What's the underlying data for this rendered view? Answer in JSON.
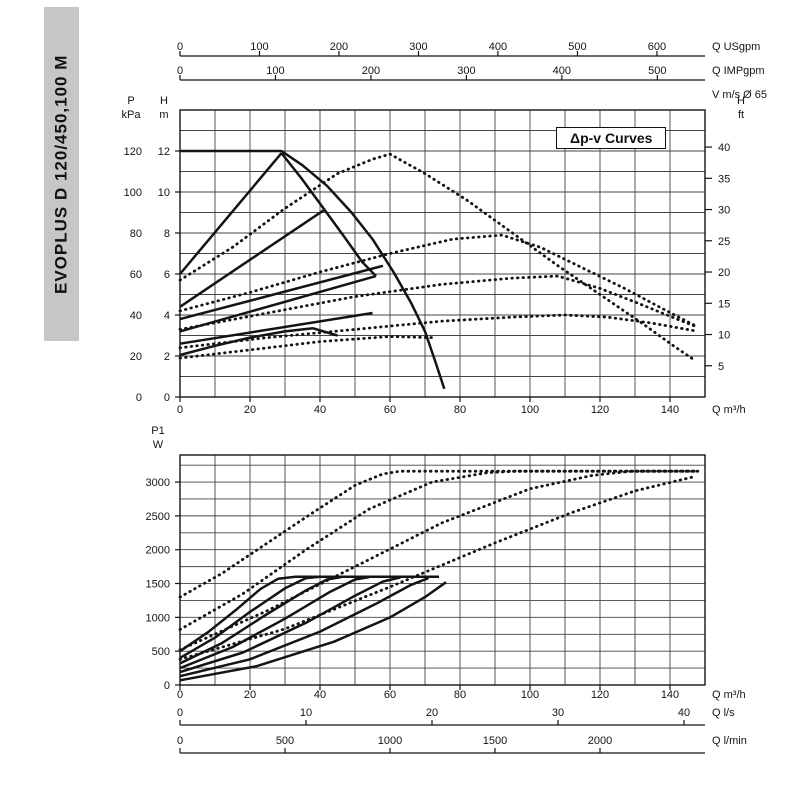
{
  "banner": {
    "text": "EVOPLUS D 120/450,100 M"
  },
  "colors": {
    "ink": "#141414",
    "grid": "#444444",
    "banner_bg": "#c6c6c6",
    "page_bg": "#ffffff"
  },
  "chart_data": [
    {
      "id": "head_chart",
      "type": "line",
      "title": "Δp-v Curves",
      "x_axis": {
        "label": "Q m³/h",
        "min": 0,
        "max": 150,
        "grid_step": 10,
        "tick_labels": [
          0,
          20,
          40,
          60,
          80,
          100,
          120,
          140
        ]
      },
      "y_axis": {
        "label": "H m",
        "min": 0,
        "max": 14,
        "grid_step": 1,
        "tick_labels": [
          0,
          2,
          4,
          6,
          8,
          10,
          12
        ]
      },
      "y_axis_kpa": {
        "label": "P kPa",
        "kpa_per_m": 10,
        "tick_labels": [
          0,
          20,
          40,
          60,
          80,
          100,
          120
        ]
      },
      "y_axis_ft": {
        "label": "H ft",
        "m_per_ft": 0.3048,
        "tick_labels": [
          5,
          10,
          15,
          20,
          25,
          30,
          35,
          40
        ]
      },
      "top_axes": [
        {
          "label": "Q USgpm",
          "m3h_per_unit": 0.22712,
          "tick_labels": [
            0,
            100,
            200,
            300,
            400,
            500,
            600
          ]
        },
        {
          "label": "Q IMPgpm",
          "m3h_per_unit": 0.27276,
          "tick_labels": [
            0,
            100,
            200,
            300,
            400,
            500
          ]
        },
        {
          "label": "V m/s Ø 65",
          "tick_labels": []
        }
      ],
      "series": [
        {
          "name": "max-speed-curve",
          "style": "solid",
          "points": [
            [
              0,
              12
            ],
            [
              29,
              12
            ],
            [
              35,
              11.3
            ],
            [
              42,
              10.3
            ],
            [
              49,
              9.0
            ],
            [
              55,
              7.7
            ],
            [
              61,
              6.1
            ],
            [
              66,
              4.6
            ],
            [
              70,
              3.2
            ],
            [
              73,
              1.7
            ],
            [
              75.5,
              0.4
            ]
          ]
        },
        {
          "name": "mid-speed-curve",
          "style": "solid",
          "points": [
            [
              29,
              11.9
            ],
            [
              35,
              10.6
            ],
            [
              41,
              9.2
            ],
            [
              47,
              7.8
            ],
            [
              52,
              6.6
            ],
            [
              56,
              5.9
            ]
          ]
        },
        {
          "name": "dpv-set-1",
          "style": "solid",
          "points": [
            [
              0,
              6.0
            ],
            [
              29,
              11.9
            ]
          ]
        },
        {
          "name": "dpv-set-2",
          "style": "solid",
          "points": [
            [
              0,
              4.4
            ],
            [
              41,
              9.1
            ]
          ]
        },
        {
          "name": "dpv-set-3",
          "style": "solid",
          "points": [
            [
              0,
              3.8
            ],
            [
              58,
              6.4
            ]
          ]
        },
        {
          "name": "dpv-set-4",
          "style": "solid",
          "points": [
            [
              0,
              3.2
            ],
            [
              56,
              5.9
            ]
          ]
        },
        {
          "name": "dpv-set-5",
          "style": "solid",
          "points": [
            [
              0,
              2.6
            ],
            [
              55,
              4.1
            ]
          ]
        },
        {
          "name": "min-speed-curve",
          "style": "solid",
          "points": [
            [
              0,
              2.05
            ],
            [
              10,
              2.5
            ],
            [
              20,
              2.9
            ],
            [
              30,
              3.2
            ],
            [
              38,
              3.35
            ],
            [
              45,
              3.0
            ]
          ]
        },
        {
          "name": "parallel-max",
          "style": "dotted",
          "points": [
            [
              0,
              5.7
            ],
            [
              15,
              7.3
            ],
            [
              30,
              9.2
            ],
            [
              45,
              10.9
            ],
            [
              55,
              11.6
            ],
            [
              60,
              11.85
            ],
            [
              70,
              10.9
            ],
            [
              82,
              9.6
            ],
            [
              95,
              8.0
            ],
            [
              108,
              6.4
            ],
            [
              120,
              5.0
            ],
            [
              132,
              3.6
            ],
            [
              141,
              2.5
            ],
            [
              147,
              1.8
            ]
          ]
        },
        {
          "name": "parallel-2",
          "style": "dotted",
          "points": [
            [
              0,
              4.2
            ],
            [
              20,
              5.1
            ],
            [
              40,
              6.1
            ],
            [
              60,
              7.0
            ],
            [
              78,
              7.7
            ],
            [
              92,
              7.9
            ],
            [
              103,
              7.3
            ],
            [
              115,
              6.3
            ],
            [
              127,
              5.3
            ],
            [
              138,
              4.3
            ],
            [
              147,
              3.5
            ]
          ]
        },
        {
          "name": "parallel-3",
          "style": "dotted",
          "points": [
            [
              0,
              3.3
            ],
            [
              25,
              4.1
            ],
            [
              50,
              4.9
            ],
            [
              75,
              5.5
            ],
            [
              95,
              5.8
            ],
            [
              108,
              5.9
            ],
            [
              120,
              5.3
            ],
            [
              132,
              4.5
            ],
            [
              142,
              3.8
            ],
            [
              148,
              3.4
            ]
          ]
        },
        {
          "name": "parallel-4",
          "style": "dotted",
          "points": [
            [
              0,
              2.4
            ],
            [
              25,
              2.9
            ],
            [
              50,
              3.3
            ],
            [
              75,
              3.7
            ],
            [
              95,
              3.9
            ],
            [
              110,
              4.0
            ],
            [
              122,
              3.9
            ],
            [
              135,
              3.6
            ],
            [
              148,
              3.2
            ]
          ]
        },
        {
          "name": "parallel-min",
          "style": "dotted",
          "points": [
            [
              0,
              1.9
            ],
            [
              20,
              2.3
            ],
            [
              40,
              2.7
            ],
            [
              60,
              2.95
            ],
            [
              72,
              2.9
            ]
          ]
        }
      ]
    },
    {
      "id": "power_chart",
      "type": "line",
      "x_axis": {
        "label": "Q m³/h",
        "min": 0,
        "max": 150,
        "grid_step": 10,
        "tick_labels": [
          0,
          20,
          40,
          60,
          80,
          100,
          120,
          140
        ]
      },
      "y_axis": {
        "label": "P1 W",
        "min": 0,
        "max": 3400,
        "grid_step": 250,
        "tick_labels": [
          0,
          500,
          1000,
          1500,
          2000,
          2500,
          3000
        ]
      },
      "bottom_axes": [
        {
          "label": "Q l/s",
          "m3h_per_unit": 3.6,
          "tick_labels": [
            0,
            10,
            20,
            30,
            40
          ]
        },
        {
          "label": "Q l/min",
          "m3h_per_unit": 0.06,
          "tick_labels": [
            0,
            500,
            1000,
            1500,
            2000
          ]
        }
      ],
      "series": [
        {
          "name": "p1-set-1",
          "style": "solid",
          "points": [
            [
              0,
              500
            ],
            [
              8,
              780
            ],
            [
              16,
              1110
            ],
            [
              23,
              1420
            ],
            [
              28,
              1570
            ],
            [
              33,
              1600
            ],
            [
              74,
              1600
            ]
          ]
        },
        {
          "name": "p1-set-2",
          "style": "solid",
          "points": [
            [
              0,
              400
            ],
            [
              10,
              700
            ],
            [
              20,
              1080
            ],
            [
              30,
              1430
            ],
            [
              36,
              1580
            ],
            [
              40,
              1600
            ]
          ]
        },
        {
          "name": "p1-set-3",
          "style": "solid",
          "points": [
            [
              0,
              320
            ],
            [
              12,
              620
            ],
            [
              24,
              1020
            ],
            [
              36,
              1400
            ],
            [
              42,
              1560
            ],
            [
              46,
              1595
            ]
          ]
        },
        {
          "name": "p1-set-4",
          "style": "solid",
          "points": [
            [
              0,
              250
            ],
            [
              15,
              560
            ],
            [
              30,
              980
            ],
            [
              43,
              1380
            ],
            [
              50,
              1560
            ],
            [
              54,
              1595
            ]
          ]
        },
        {
          "name": "p1-set-5",
          "style": "solid",
          "points": [
            [
              0,
              190
            ],
            [
              18,
              480
            ],
            [
              36,
              920
            ],
            [
              50,
              1320
            ],
            [
              58,
              1530
            ],
            [
              63,
              1590
            ]
          ]
        },
        {
          "name": "p1-set-6",
          "style": "solid",
          "points": [
            [
              0,
              130
            ],
            [
              20,
              380
            ],
            [
              40,
              790
            ],
            [
              56,
              1200
            ],
            [
              66,
              1480
            ],
            [
              71,
              1580
            ]
          ]
        },
        {
          "name": "p1-set-7",
          "style": "solid",
          "points": [
            [
              0,
              70
            ],
            [
              22,
              280
            ],
            [
              44,
              640
            ],
            [
              60,
              1000
            ],
            [
              70,
              1300
            ],
            [
              76,
              1520
            ]
          ]
        },
        {
          "name": "p1-parallel-1",
          "style": "dotted",
          "points": [
            [
              0,
              1300
            ],
            [
              12,
              1650
            ],
            [
              25,
              2100
            ],
            [
              38,
              2550
            ],
            [
              50,
              2950
            ],
            [
              58,
              3120
            ],
            [
              63,
              3160
            ],
            [
              148,
              3160
            ]
          ]
        },
        {
          "name": "p1-parallel-2",
          "style": "dotted",
          "points": [
            [
              0,
              820
            ],
            [
              18,
              1350
            ],
            [
              36,
              2000
            ],
            [
              54,
              2600
            ],
            [
              72,
              3000
            ],
            [
              88,
              3140
            ],
            [
              96,
              3160
            ],
            [
              148,
              3160
            ]
          ]
        },
        {
          "name": "p1-parallel-3",
          "style": "dotted",
          "points": [
            [
              0,
              520
            ],
            [
              25,
              1100
            ],
            [
              50,
              1750
            ],
            [
              75,
              2400
            ],
            [
              100,
              2900
            ],
            [
              118,
              3100
            ],
            [
              129,
              3160
            ],
            [
              148,
              3160
            ]
          ]
        },
        {
          "name": "p1-parallel-4",
          "style": "dotted",
          "points": [
            [
              0,
              380
            ],
            [
              30,
              830
            ],
            [
              60,
              1450
            ],
            [
              90,
              2100
            ],
            [
              112,
              2550
            ],
            [
              130,
              2870
            ],
            [
              147,
              3080
            ]
          ]
        }
      ]
    }
  ]
}
